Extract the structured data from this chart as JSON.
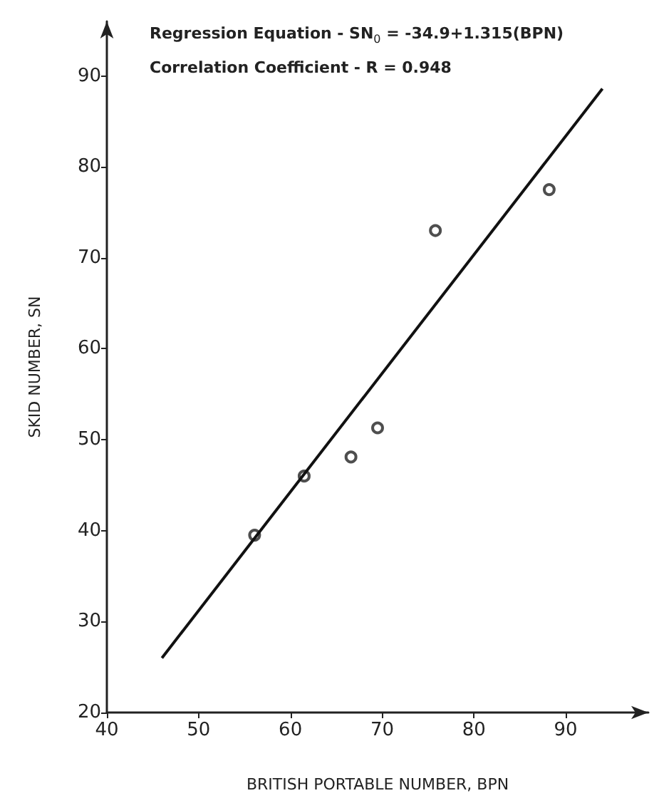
{
  "chart_data": {
    "type": "scatter",
    "xlabel": "BRITISH PORTABLE NUMBER, BPN",
    "ylabel": "SKID NUMBER, SN",
    "annotations": [
      "Regression Equation - SN$_{0}$ = -34.9+1.315(BPN)",
      "Correlation Coefficient - R = 0.948"
    ],
    "series": [
      {
        "color": "#222222",
        "marker": "circle",
        "x": [
          56.1,
          61.5,
          66.6,
          69.5,
          75.8,
          88.2
        ],
        "values": [
          39.5,
          46.0,
          48.1,
          51.3,
          73.0,
          77.5
        ]
      },
      {
        "type": "line",
        "color": "#111111",
        "marker": "none",
        "line_style": "solid",
        "x": [
          46,
          94
        ],
        "values": [
          26,
          88.6
        ]
      }
    ],
    "xlim": [
      40,
      99
    ],
    "xticks": [
      40,
      50,
      60,
      70,
      80,
      90
    ],
    "ylim": [
      20,
      96
    ],
    "yticks": [
      20,
      30,
      40,
      50,
      60,
      70,
      80,
      90
    ],
    "grid": false
  }
}
